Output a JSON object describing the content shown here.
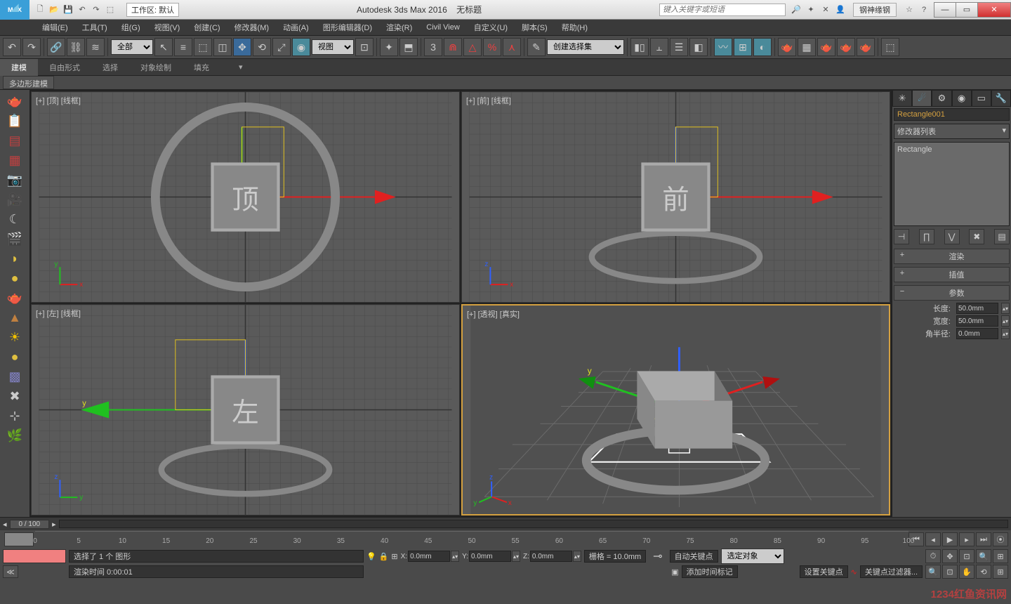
{
  "title": {
    "app": "Autodesk 3ds Max 2016",
    "doc": "无标题",
    "workspace_label": "工作区: 默认",
    "search_placeholder": "键入关键字或短语",
    "user": "钢神缘钢"
  },
  "menu": [
    "编辑(E)",
    "工具(T)",
    "组(G)",
    "视图(V)",
    "创建(C)",
    "修改器(M)",
    "动画(A)",
    "图形编辑器(D)",
    "渲染(R)",
    "Civil View",
    "自定义(U)",
    "脚本(S)",
    "帮助(H)"
  ],
  "toolbar": {
    "filter_sel": "全部",
    "ref_sel": "视图",
    "named_sel": "创建选择集"
  },
  "ribbon_tabs": [
    "建模",
    "自由形式",
    "选择",
    "对象绘制",
    "填充"
  ],
  "ribbon_active": 0,
  "ribbon_sub": "多边形建模",
  "viewports": {
    "tl": "[+] [顶] [线框]",
    "tr": "[+] [前] [线框]",
    "bl": "[+] [左] [线框]",
    "br": "[+] [透视] [真实]"
  },
  "cmd": {
    "object_name": "Rectangle001",
    "modifier_list": "修改器列表",
    "stack_item": "Rectangle",
    "rollouts": [
      {
        "pm": "+",
        "t": "渲染"
      },
      {
        "pm": "+",
        "t": "插值"
      },
      {
        "pm": "−",
        "t": "参数"
      }
    ],
    "params": [
      {
        "label": "长度:",
        "value": "50.0mm"
      },
      {
        "label": "宽度:",
        "value": "50.0mm"
      },
      {
        "label": "角半径:",
        "value": "0.0mm"
      }
    ]
  },
  "track": {
    "frame": "0 / 100"
  },
  "timeline_ticks": [
    "0",
    "5",
    "10",
    "15",
    "20",
    "25",
    "30",
    "35",
    "40",
    "45",
    "50",
    "55",
    "60",
    "65",
    "70",
    "75",
    "80",
    "85",
    "90",
    "95",
    "100"
  ],
  "status": {
    "sel": "选择了 1 个 图形",
    "x": "0.0mm",
    "y": "0.0mm",
    "z": "0.0mm",
    "grid": "栅格 = 10.0mm",
    "autokey": "自动关键点",
    "selobj": "选定对象",
    "setkey": "设置关键点",
    "keyfilter": "关键点过滤器...",
    "render": "渲染时间 0:00:01",
    "addtag": "添加时间标记"
  },
  "watermark": "1234红鱼资讯网",
  "colors": {
    "accent": "#d4a040",
    "axis_x": "#e02020",
    "axis_y": "#20c020",
    "axis_z": "#3060ff"
  }
}
